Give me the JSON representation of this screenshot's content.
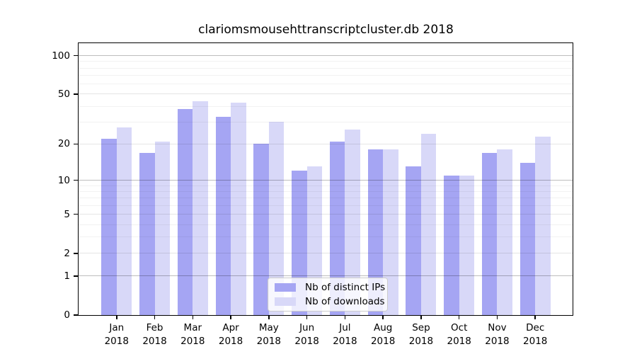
{
  "figure": {
    "title": "clariomsmousehttranscriptcluster.db 2018",
    "background": "#ffffff"
  },
  "legend": {
    "position": "lower center",
    "items": [
      {
        "label": "Nb of distinct IPs",
        "color": "#a5a5f3"
      },
      {
        "label": "Nb of downloads",
        "color": "#d8d8f8"
      }
    ]
  },
  "chart_data": {
    "type": "bar",
    "title": "clariomsmousehttranscriptcluster.db 2018",
    "categories": [
      "Jan 2018",
      "Feb 2018",
      "Mar 2018",
      "Apr 2018",
      "May 2018",
      "Jun 2018",
      "Jul 2018",
      "Aug 2018",
      "Sep 2018",
      "Oct 2018",
      "Nov 2018",
      "Dec 2018"
    ],
    "months": [
      "Jan",
      "Feb",
      "Mar",
      "Apr",
      "May",
      "Jun",
      "Jul",
      "Aug",
      "Sep",
      "Oct",
      "Nov",
      "Dec"
    ],
    "year_label": "2018",
    "series": [
      {
        "name": "Nb of distinct IPs",
        "color": "#a5a5f3",
        "values": [
          22,
          17,
          38,
          33,
          20,
          12,
          21,
          18,
          13,
          11,
          17,
          14
        ]
      },
      {
        "name": "Nb of downloads",
        "color": "#d8d8f8",
        "values": [
          27,
          21,
          44,
          43,
          30,
          13,
          26,
          18,
          24,
          11,
          18,
          23
        ]
      }
    ],
    "yscale": "log1p",
    "ylim": [
      0,
      125
    ],
    "y_ticks": [
      0,
      1,
      2,
      5,
      10,
      20,
      50,
      100
    ],
    "gridlines": {
      "major": [
        1,
        10,
        100
      ],
      "mid": [
        2,
        5,
        20,
        50
      ],
      "minor": [
        3,
        4,
        6,
        7,
        8,
        9,
        30,
        40,
        60,
        70,
        80,
        90
      ]
    },
    "grid_on": true,
    "legend_position": "lower center",
    "axis_color": "#000000"
  }
}
